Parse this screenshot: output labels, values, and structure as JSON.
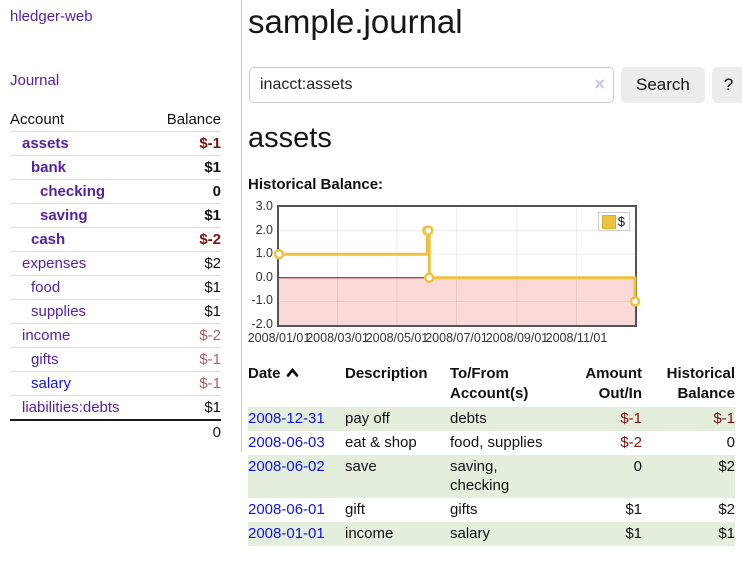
{
  "app": {
    "brand": "hledger-web"
  },
  "sidebar": {
    "nav": {
      "journal": "Journal"
    },
    "accounts": {
      "headers": {
        "account": "Account",
        "balance": "Balance"
      },
      "rows": [
        {
          "name": "assets",
          "balance": "$-1",
          "indent": 1
        },
        {
          "name": "bank",
          "balance": "$1",
          "indent": 2
        },
        {
          "name": "checking",
          "balance": "0",
          "indent": 3
        },
        {
          "name": "saving",
          "balance": "$1",
          "indent": 3
        },
        {
          "name": "cash",
          "balance": "$-2",
          "indent": 2
        },
        {
          "name": "expenses",
          "balance": "$2",
          "indent": 1
        },
        {
          "name": "food",
          "balance": "$1",
          "indent": 2
        },
        {
          "name": "supplies",
          "balance": "$1",
          "indent": 2
        },
        {
          "name": "income",
          "balance": "$-2",
          "indent": 1
        },
        {
          "name": "gifts",
          "balance": "$-1",
          "indent": 2
        },
        {
          "name": "salary",
          "balance": "$-1",
          "indent": 2
        },
        {
          "name": "liabilities:debts",
          "balance": "$1",
          "indent": 1
        }
      ],
      "total": "0"
    }
  },
  "main": {
    "title": "sample.journal",
    "search": {
      "value": "inacct:assets",
      "clear_icon": "×",
      "button_label": "Search",
      "help_label": "?"
    },
    "account_heading": "assets"
  },
  "chart_data": {
    "type": "line",
    "step": true,
    "title": "Historical Balance:",
    "series": [
      {
        "name": "$",
        "color": "#edc240",
        "points": [
          {
            "date": "2008-01-01",
            "value": 1
          },
          {
            "date": "2008-06-01",
            "value": 2
          },
          {
            "date": "2008-06-02",
            "value": 2
          },
          {
            "date": "2008-06-03",
            "value": 0
          },
          {
            "date": "2008-12-31",
            "value": -1
          }
        ]
      }
    ],
    "x_range": [
      "2008-01-01",
      "2008-12-31"
    ],
    "ylim": [
      -2,
      3
    ],
    "y_ticks": [
      {
        "label": "3.0",
        "value": 3
      },
      {
        "label": "2.0",
        "value": 2
      },
      {
        "label": "1.0",
        "value": 1
      },
      {
        "label": "0.0",
        "value": 0
      },
      {
        "label": "-1.0",
        "value": -1
      },
      {
        "label": "-2.0",
        "value": -2
      }
    ],
    "x_ticks": [
      {
        "label": "2008/01/01",
        "date": "2008-01-01"
      },
      {
        "label": "2008/03/01",
        "date": "2008-03-01"
      },
      {
        "label": "2008/05/01",
        "date": "2008-05-01"
      },
      {
        "label": "2008/07/01",
        "date": "2008-07-01"
      },
      {
        "label": "2008/09/01",
        "date": "2008-09-01"
      },
      {
        "label": "2008/11/01",
        "date": "2008-11-01"
      }
    ],
    "grid": true,
    "legend": {
      "position": "top-right",
      "label": "$",
      "swatch_color": "#edc240"
    },
    "negative_region_color": "#fbd9d9",
    "zero_line_color": "#8b0000",
    "marker": {
      "shape": "circle",
      "fill": "#ffffff"
    }
  },
  "register": {
    "headers": {
      "date": "Date",
      "description": "Description",
      "accounts": "To/From\nAccount(s)",
      "amount": "Amount\nOut/In",
      "balance": "Historical\nBalance"
    },
    "rows": [
      {
        "date": "2008-12-31",
        "description": "pay off",
        "accounts": "debts",
        "amount": "$-1",
        "balance": "$-1"
      },
      {
        "date": "2008-06-03",
        "description": "eat & shop",
        "accounts": "food, supplies",
        "amount": "$-2",
        "balance": "0"
      },
      {
        "date": "2008-06-02",
        "description": "save",
        "accounts": "saving,\nchecking",
        "amount": "0",
        "balance": "$2"
      },
      {
        "date": "2008-06-01",
        "description": "gift",
        "accounts": "gifts",
        "amount": "$1",
        "balance": "$2"
      },
      {
        "date": "2008-01-01",
        "description": "income",
        "accounts": "salary",
        "amount": "$1",
        "balance": "$1"
      }
    ]
  }
}
